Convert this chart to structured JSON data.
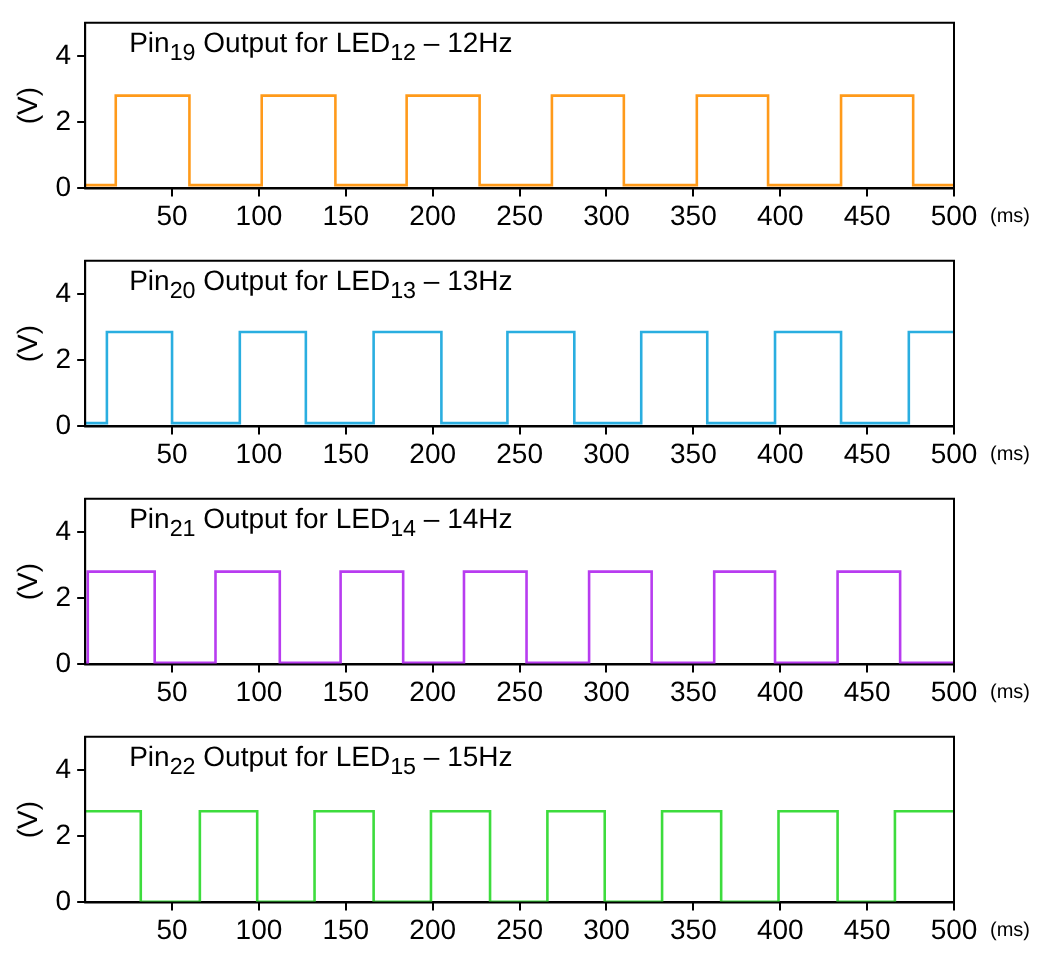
{
  "chart_data": [
    {
      "type": "step",
      "title": "Pin$_{19}$ Output for LED$_{12}$ – 12Hz",
      "ylabel": "(V)",
      "xlabel": "(ms)",
      "xlim": [
        0,
        500
      ],
      "xticks": [
        50,
        100,
        150,
        200,
        250,
        300,
        350,
        400,
        450,
        500
      ],
      "ylim": [
        0,
        5
      ],
      "yticks": [
        0,
        2,
        4
      ],
      "grid": false,
      "series": [
        {
          "color": "#ff9a1a",
          "x": [
            0,
            17.6,
            60,
            101.6,
            144,
            185,
            227,
            268.6,
            310,
            352,
            393,
            435,
            476.5,
            500
          ],
          "values": [
            0.1,
            2.8,
            0.1,
            2.8,
            0.1,
            2.8,
            0.1,
            2.8,
            0.1,
            2.8,
            0.1,
            2.8,
            0.1,
            0.1
          ]
        }
      ]
    },
    {
      "type": "step",
      "title": "Pin$_{20}$ Output for LED$_{13}$ – 13Hz",
      "ylabel": "(V)",
      "xlabel": "(ms)",
      "xlim": [
        0,
        500
      ],
      "xticks": [
        50,
        100,
        150,
        200,
        250,
        300,
        350,
        400,
        450,
        500
      ],
      "ylim": [
        0,
        5
      ],
      "yticks": [
        0,
        2,
        4
      ],
      "grid": false,
      "series": [
        {
          "color": "#2aaee0",
          "x": [
            0,
            12.5,
            50,
            89,
            127,
            166,
            205,
            243,
            281.5,
            320,
            358,
            397,
            435,
            474,
            500
          ],
          "values": [
            0.1,
            2.85,
            0.1,
            2.85,
            0.1,
            2.85,
            0.1,
            2.85,
            0.1,
            2.85,
            0.1,
            2.85,
            0.1,
            2.85,
            2.85
          ]
        }
      ]
    },
    {
      "type": "step",
      "title": "Pin$_{21}$ Output for LED$_{14}$ – 14Hz",
      "ylabel": "(V)",
      "xlabel": "(ms)",
      "xlim": [
        0,
        500
      ],
      "xticks": [
        50,
        100,
        150,
        200,
        250,
        300,
        350,
        400,
        450,
        500
      ],
      "ylim": [
        0,
        5
      ],
      "yticks": [
        0,
        2,
        4
      ],
      "grid": false,
      "series": [
        {
          "color": "#b83cf0",
          "x": [
            0,
            1.5,
            40,
            75,
            112,
            147,
            183,
            218,
            254,
            290,
            326,
            362,
            397,
            433,
            469,
            500
          ],
          "values": [
            0.05,
            2.8,
            0.05,
            2.8,
            0.05,
            2.8,
            0.05,
            2.8,
            0.05,
            2.8,
            0.05,
            2.8,
            0.05,
            2.8,
            0.05,
            0.05
          ]
        }
      ]
    },
    {
      "type": "step",
      "title": "Pin$_{22}$ Output for LED$_{15}$ – 15Hz",
      "ylabel": "(V)",
      "xlabel": "(ms)",
      "xlim": [
        0,
        500
      ],
      "xticks": [
        50,
        100,
        150,
        200,
        250,
        300,
        350,
        400,
        450,
        500
      ],
      "ylim": [
        0,
        5
      ],
      "yticks": [
        0,
        2,
        4
      ],
      "grid": false,
      "series": [
        {
          "color": "#3ddc3d",
          "x": [
            0,
            32,
            66,
            99,
            132,
            166,
            199,
            233,
            266,
            299,
            332,
            366,
            399,
            433,
            466,
            500
          ],
          "values": [
            2.75,
            0.02,
            2.75,
            0.02,
            2.75,
            0.02,
            2.75,
            0.02,
            2.75,
            0.02,
            2.75,
            0.02,
            2.75,
            0.02,
            2.75,
            2.75
          ]
        }
      ]
    }
  ]
}
